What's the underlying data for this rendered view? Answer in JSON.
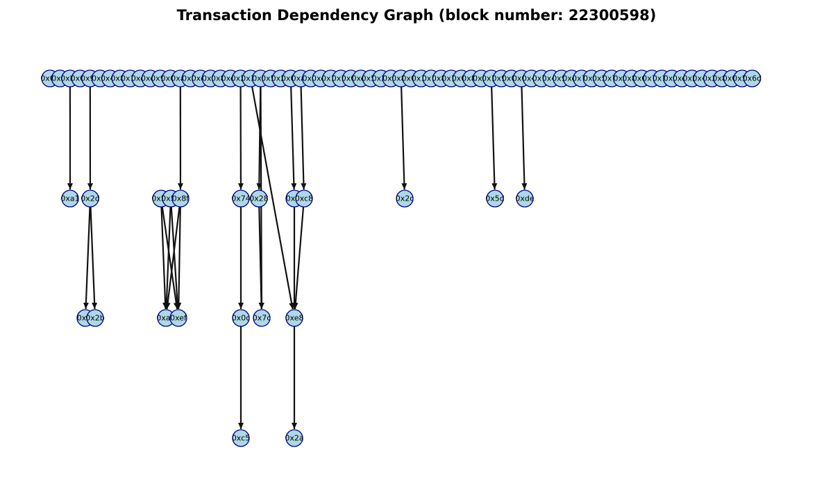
{
  "title": "Transaction Dependency Graph (block number: 22300598)",
  "colors": {
    "node_fill": "#add8e6",
    "node_stroke": "#00008b",
    "edge": "#111111"
  },
  "levels": [
    [
      "0x08",
      "0xf0",
      "0xb9",
      "0x08",
      "0x91",
      "0x1f",
      "0x45",
      "0x88",
      "0x1a",
      "0xc5",
      "0xe5",
      "0x92",
      "0x66",
      "0xa6",
      "0xf5",
      "0xca",
      "0x0f",
      "0x8e",
      "0xe8",
      "0x24",
      "0x31",
      "0x3f",
      "0x55",
      "0x20",
      "0x08",
      "0xa8",
      "0x6f",
      "0xc1",
      "0x1e",
      "0x1c",
      "0x02",
      "0xed",
      "0x51",
      "0x2c",
      "0x5f",
      "0x8e",
      "0x04",
      "0x16",
      "0x1c",
      "0x8a",
      "0x15",
      "0x02",
      "0x88",
      "0xf9",
      "0x14",
      "0x95",
      "0x08",
      "0x0c",
      "0x46",
      "0x7c",
      "0x44",
      "0x96",
      "0xc0",
      "0x76",
      "0xf5",
      "0x57",
      "0x7c",
      "0xf7",
      "0x8b",
      "0x64",
      "0x75",
      "0x1a",
      "0x0f",
      "0xe5",
      "0xbc",
      "0x4d",
      "0x20",
      "0x8d",
      "0x02",
      "0x58",
      "0x6d"
    ],
    [
      "0xa1",
      "0x2d",
      "0x55",
      "0x55",
      "0x8f",
      "0x74",
      "0x28",
      "0x7f",
      "0xc8",
      "0x2c",
      "0x5d",
      "0xde"
    ],
    [
      "0xf9",
      "0x2b",
      "0xa1",
      "0xef",
      "0x0c",
      "0x7c",
      "0xe8"
    ],
    [
      "0xc5",
      "0x2a"
    ]
  ],
  "edges": [
    [
      [
        0,
        2
      ],
      [
        1,
        0
      ]
    ],
    [
      [
        0,
        4
      ],
      [
        1,
        1
      ]
    ],
    [
      [
        0,
        13
      ],
      [
        1,
        4
      ]
    ],
    [
      [
        0,
        19
      ],
      [
        1,
        5
      ]
    ],
    [
      [
        0,
        21
      ],
      [
        1,
        6
      ]
    ],
    [
      [
        0,
        24
      ],
      [
        1,
        7
      ]
    ],
    [
      [
        0,
        25
      ],
      [
        1,
        8
      ]
    ],
    [
      [
        0,
        35
      ],
      [
        1,
        9
      ]
    ],
    [
      [
        0,
        44
      ],
      [
        1,
        10
      ]
    ],
    [
      [
        0,
        47
      ],
      [
        1,
        11
      ]
    ],
    [
      [
        1,
        1
      ],
      [
        2,
        0
      ]
    ],
    [
      [
        1,
        1
      ],
      [
        2,
        1
      ]
    ],
    [
      [
        1,
        2
      ],
      [
        2,
        2
      ]
    ],
    [
      [
        1,
        2
      ],
      [
        2,
        3
      ]
    ],
    [
      [
        1,
        3
      ],
      [
        2,
        2
      ]
    ],
    [
      [
        1,
        3
      ],
      [
        2,
        3
      ]
    ],
    [
      [
        1,
        4
      ],
      [
        2,
        2
      ]
    ],
    [
      [
        1,
        4
      ],
      [
        2,
        3
      ]
    ],
    [
      [
        1,
        5
      ],
      [
        2,
        4
      ]
    ],
    [
      [
        1,
        6
      ],
      [
        2,
        5
      ]
    ],
    [
      [
        1,
        7
      ],
      [
        2,
        6
      ]
    ],
    [
      [
        1,
        8
      ],
      [
        2,
        6
      ]
    ],
    [
      [
        0,
        20
      ],
      [
        2,
        6
      ]
    ],
    [
      [
        0,
        21
      ],
      [
        2,
        5
      ]
    ],
    [
      [
        2,
        4
      ],
      [
        3,
        0
      ]
    ],
    [
      [
        2,
        6
      ],
      [
        3,
        1
      ]
    ]
  ]
}
